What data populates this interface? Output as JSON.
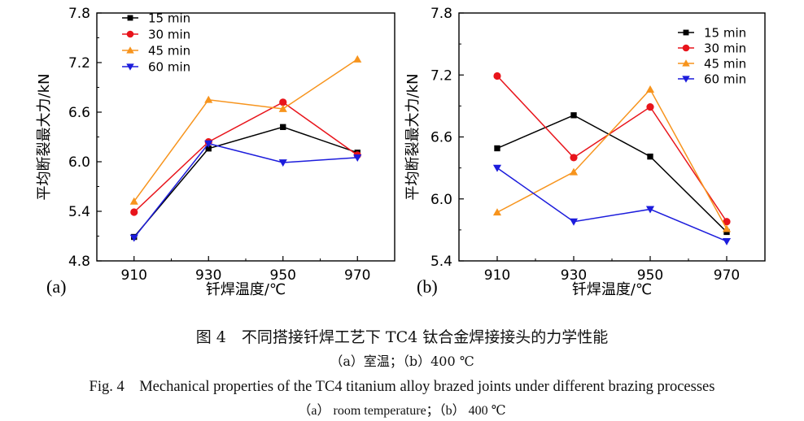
{
  "chart_data": [
    {
      "type": "line",
      "panel_label": "(a)",
      "title": "",
      "xlabel": "钎焊温度/℃",
      "ylabel": "平均断裂最大力/kN",
      "x": [
        910,
        930,
        950,
        970
      ],
      "xlim": [
        900,
        980
      ],
      "ylim": [
        4.8,
        7.8
      ],
      "yticks": [
        4.8,
        5.4,
        6.0,
        6.6,
        7.2,
        7.8
      ],
      "yticks_labels": [
        "4.8",
        "5.4",
        "6.0",
        "6.6",
        "7.2",
        "7.8"
      ],
      "xticks_labels": [
        "910",
        "930",
        "950",
        "970"
      ],
      "legend_position": "top-left",
      "series": [
        {
          "name": "15 min",
          "color": "#000000",
          "marker": "square",
          "values": [
            5.09,
            6.16,
            6.42,
            6.11
          ]
        },
        {
          "name": "30 min",
          "color": "#e8141b",
          "marker": "circle",
          "values": [
            5.39,
            6.24,
            6.72,
            6.08
          ]
        },
        {
          "name": "45 min",
          "color": "#f7941d",
          "marker": "triangle-up",
          "values": [
            5.52,
            6.75,
            6.64,
            7.24
          ]
        },
        {
          "name": "60 min",
          "color": "#1c1cdc",
          "marker": "triangle-down",
          "values": [
            5.08,
            6.22,
            5.99,
            6.05
          ]
        }
      ]
    },
    {
      "type": "line",
      "panel_label": "(b)",
      "title": "",
      "xlabel": "钎焊温度/℃",
      "ylabel": "平均断裂最大力/kN",
      "x": [
        910,
        930,
        950,
        970
      ],
      "xlim": [
        900,
        980
      ],
      "ylim": [
        5.4,
        7.8
      ],
      "yticks": [
        5.4,
        6.0,
        6.6,
        7.2,
        7.8
      ],
      "yticks_labels": [
        "5.4",
        "6.0",
        "6.6",
        "7.2",
        "7.8"
      ],
      "xticks_labels": [
        "910",
        "930",
        "950",
        "970"
      ],
      "legend_position": "top-right",
      "series": [
        {
          "name": "15 min",
          "color": "#000000",
          "marker": "square",
          "values": [
            6.49,
            6.81,
            6.41,
            5.68
          ]
        },
        {
          "name": "30 min",
          "color": "#e8141b",
          "marker": "circle",
          "values": [
            7.19,
            6.4,
            6.89,
            5.78
          ]
        },
        {
          "name": "45 min",
          "color": "#f7941d",
          "marker": "triangle-up",
          "values": [
            5.87,
            6.26,
            7.06,
            5.71
          ]
        },
        {
          "name": "60 min",
          "color": "#1c1cdc",
          "marker": "triangle-down",
          "values": [
            6.3,
            5.78,
            5.9,
            5.59
          ]
        }
      ]
    }
  ],
  "caption": {
    "title_zh": "图 4　不同搭接钎焊工艺下 TC4 钛合金焊接接头的力学性能",
    "sub_zh": "（a）室温；（b）400 ℃",
    "title_en": "Fig. 4　Mechanical properties of the TC4 titanium alloy brazed joints under different brazing processes",
    "sub_en": "（a） room temperature；（b） 400 ℃"
  }
}
